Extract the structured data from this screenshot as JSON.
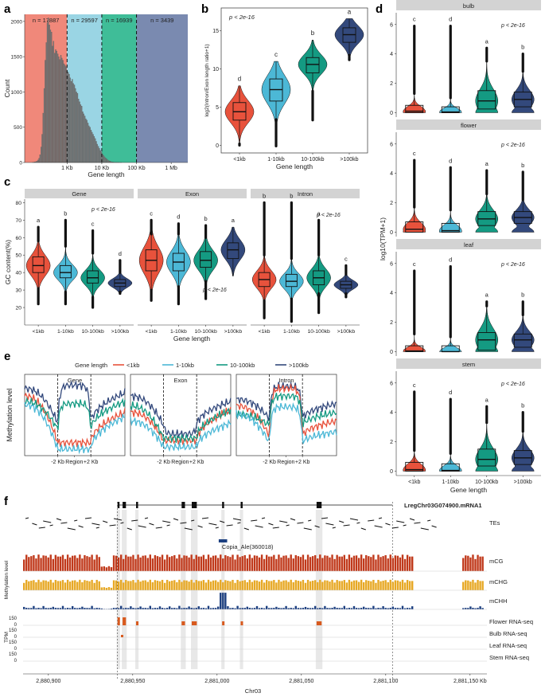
{
  "figure": {
    "panel_labels": [
      "a",
      "b",
      "c",
      "d",
      "e",
      "f"
    ],
    "colors": {
      "lt1": "#e8523c",
      "t1_10": "#4cb8d6",
      "t10_100": "#149a82",
      "gt100": "#33497c",
      "mCG": "#c0391b",
      "mCHG": "#e7a824",
      "mCHH": "#1c3f80",
      "rna": "#d85a1e"
    }
  },
  "chart_data": [
    {
      "panel": "a",
      "type": "bar",
      "title": "",
      "xlabel": "Gene length",
      "ylabel": "Count",
      "xscale": "log",
      "xlim_bp": [
        60,
        3000000
      ],
      "ylim": [
        0,
        2100
      ],
      "yticks": [
        "0",
        "500",
        "1000",
        "1500",
        "2000"
      ],
      "xticks": [
        "1 Kb",
        "10 Kb",
        "100 Kb",
        "1 Mb"
      ],
      "regions": [
        {
          "label": "n = 17887",
          "from_bp": 60,
          "to_bp": 1000,
          "color": "#f0887a"
        },
        {
          "label": "n = 29597",
          "from_bp": 1000,
          "to_bp": 10000,
          "color": "#9ad5e4"
        },
        {
          "label": "n = 16939",
          "from_bp": 10000,
          "to_bp": 100000,
          "color": "#3fbd98"
        },
        {
          "label": "n = 3439",
          "from_bp": 100000,
          "to_bp": 3000000,
          "color": "#7a8ab0"
        }
      ],
      "histogram": {
        "log10_start": 2.0,
        "bin_width_log10": 0.03,
        "counts": [
          3,
          5,
          8,
          12,
          20,
          35,
          60,
          110,
          220,
          400,
          700,
          1050,
          1450,
          1700,
          1980,
          2050,
          1950,
          1880,
          1850,
          1650,
          1720,
          1550,
          1600,
          1580,
          1540,
          1500,
          1460,
          1520,
          1480,
          1450,
          1400,
          1380,
          1360,
          1300,
          1280,
          1250,
          1200,
          1150,
          1180,
          1120,
          1100,
          1050,
          1000,
          980,
          900,
          860,
          820,
          800,
          720,
          690,
          660,
          620,
          600,
          560,
          520,
          500,
          460,
          430,
          400,
          370,
          340,
          300,
          260,
          230,
          200,
          170,
          150,
          120,
          100,
          80,
          65,
          50,
          38,
          28,
          20,
          14,
          10,
          7,
          5,
          4,
          3,
          2,
          2,
          1,
          1,
          1
        ]
      }
    },
    {
      "panel": "b",
      "type": "violin",
      "xlabel": "Gene length",
      "ylabel": "log2(Intron/Exon length ratio+1)",
      "ylim": [
        -1,
        18
      ],
      "yticks": [
        0,
        5,
        10,
        15
      ],
      "annotation": "p < 2e-16",
      "categories": [
        "<1kb",
        "1-10kb",
        "10-100kb",
        ">100kb"
      ],
      "letters": [
        "d",
        "c",
        "b",
        "a"
      ],
      "median": [
        4.4,
        7.3,
        10.6,
        14.5
      ],
      "q1": [
        3.3,
        5.8,
        9.5,
        13.5
      ],
      "q3": [
        5.6,
        8.7,
        11.5,
        15.4
      ],
      "whisker_low": [
        0.2,
        3.4,
        7.1,
        11.8
      ],
      "whisker_high": [
        7.8,
        11.0,
        13.8,
        16.6
      ],
      "y_max": [
        7.8,
        11.0,
        13.8,
        16.6
      ],
      "y_min": [
        0.0,
        -0.1,
        3.3,
        11.2
      ]
    },
    {
      "panel": "c",
      "type": "violin",
      "xlabel": "Gene length",
      "ylabel": "GC content(%)",
      "ylim": [
        10,
        82
      ],
      "yticks": [
        20,
        30,
        40,
        50,
        60,
        70,
        80
      ],
      "categories": [
        "<1kb",
        "1-10kb",
        "10-100kb",
        ">100kb"
      ],
      "facets": [
        {
          "name": "Gene",
          "annotation": "p < 2e-16",
          "letters": [
            "a",
            "b",
            "c",
            "d"
          ],
          "median": [
            44,
            40,
            37,
            34
          ],
          "q1": [
            40,
            37,
            34,
            32
          ],
          "q3": [
            49,
            44,
            41,
            36
          ],
          "whisker_low": [
            31,
            29,
            26,
            29
          ],
          "whisker_high": [
            58,
            55,
            51,
            40
          ],
          "y_min": [
            22,
            22,
            20,
            28
          ],
          "y_max": [
            66,
            70,
            64,
            47
          ]
        },
        {
          "name": "Exon",
          "annotation": "p < 2e-16",
          "letters": [
            "c",
            "d",
            "b",
            "a"
          ],
          "median": [
            47,
            46,
            47,
            53
          ],
          "q1": [
            41,
            41,
            43,
            48
          ],
          "q3": [
            53,
            51,
            52,
            57
          ],
          "whisker_low": [
            30,
            32,
            35,
            38
          ],
          "whisker_high": [
            62,
            62,
            60,
            66
          ],
          "y_min": [
            24,
            22,
            25,
            38
          ],
          "y_max": [
            70,
            68,
            67,
            66
          ]
        },
        {
          "name": "Intron",
          "annotation": "p < 2e-16",
          "letters": [
            "b",
            "b",
            "a",
            "c"
          ],
          "median": [
            36,
            35,
            37,
            33
          ],
          "q1": [
            32,
            32,
            33,
            31
          ],
          "q3": [
            40,
            39,
            41,
            35
          ],
          "whisker_low": [
            24,
            25,
            28,
            28
          ],
          "whisker_high": [
            50,
            48,
            50,
            39
          ],
          "y_min": [
            14,
            12,
            17,
            26
          ],
          "y_max": [
            80,
            80,
            70,
            44
          ]
        }
      ]
    },
    {
      "panel": "d",
      "type": "violin",
      "xlabel": "Gene length",
      "ylabel": "log10(TPM+1)",
      "ylim": [
        -0.3,
        6.8
      ],
      "yticks": [
        0,
        2,
        4,
        6
      ],
      "categories": [
        "<1kb",
        "1-10kb",
        "10-100kb",
        ">100kb"
      ],
      "facets": [
        {
          "name": "bulb",
          "annotation": "p < 2e-16",
          "letters": [
            "c",
            "d",
            "a",
            "b"
          ],
          "median": [
            0.1,
            0.05,
            0.8,
            0.9
          ],
          "q1": [
            0,
            0,
            0.25,
            0.4
          ],
          "q3": [
            0.5,
            0.4,
            1.5,
            1.4
          ],
          "whisker_high": [
            1.3,
            1.0,
            3.5,
            2.8
          ],
          "y_max": [
            5.9,
            5.9,
            4.4,
            4.0
          ]
        },
        {
          "name": "flower",
          "annotation": "p < 2e-16",
          "letters": [
            "c",
            "d",
            "a",
            "b"
          ],
          "median": [
            0.2,
            0.1,
            0.9,
            1.0
          ],
          "q1": [
            0,
            0,
            0.45,
            0.6
          ],
          "q3": [
            0.7,
            0.6,
            1.4,
            1.4
          ],
          "whisker_high": [
            1.7,
            1.5,
            2.6,
            2.2
          ],
          "y_max": [
            4.9,
            4.4,
            4.2,
            4.1
          ]
        },
        {
          "name": "leaf",
          "annotation": "p < 2e-16",
          "letters": [
            "c",
            "d",
            "a",
            "b"
          ],
          "median": [
            0.05,
            0.0,
            0.8,
            0.8
          ],
          "q1": [
            0,
            0,
            0.1,
            0.3
          ],
          "q3": [
            0.4,
            0.4,
            1.3,
            1.2
          ],
          "whisker_high": [
            1.2,
            1.0,
            3.1,
            2.5
          ],
          "y_max": [
            5.5,
            5.8,
            3.4,
            3.4
          ]
        },
        {
          "name": "stem",
          "annotation": "p < 2e-16",
          "letters": [
            "c",
            "d",
            "a",
            "b"
          ],
          "median": [
            0.1,
            0.05,
            0.8,
            0.9
          ],
          "q1": [
            0,
            0,
            0.35,
            0.45
          ],
          "q3": [
            0.6,
            0.5,
            1.5,
            1.4
          ],
          "whisker_high": [
            1.4,
            1.2,
            3.3,
            2.7
          ],
          "y_max": [
            5.4,
            4.9,
            4.4,
            4.0
          ]
        }
      ]
    },
    {
      "panel": "e",
      "type": "line",
      "legend_title": "Gene length",
      "legend": [
        "<1kb",
        "1-10kb",
        "10-100kb",
        ">100kb"
      ],
      "ylabel": "Methylation level",
      "xticks": [
        "-2 Kb",
        "Region",
        "+2 Kb"
      ],
      "facets": [
        {
          "name": "Gene",
          "upstream_start": [
            0.55,
            0.47,
            0.5,
            0.62
          ],
          "boundary": [
            0.12,
            0.06,
            0.24,
            0.3
          ],
          "body": [
            0.12,
            0.06,
            0.48,
            0.65
          ],
          "downstream_end": [
            0.4,
            0.36,
            0.5,
            0.58
          ]
        },
        {
          "name": "Exon",
          "upstream_start": [
            0.4,
            0.32,
            0.46,
            0.55
          ],
          "boundary": [
            0.14,
            0.08,
            0.16,
            0.28
          ],
          "body": [
            0.14,
            0.08,
            0.16,
            0.2
          ],
          "downstream_end": [
            0.42,
            0.3,
            0.42,
            0.5
          ]
        },
        {
          "name": "Intron",
          "upstream_start": [
            0.46,
            0.38,
            0.38,
            0.52
          ],
          "boundary": [
            0.18,
            0.12,
            0.28,
            0.34
          ],
          "body": [
            0.62,
            0.45,
            0.55,
            0.64
          ],
          "downstream_end": [
            0.32,
            0.22,
            0.4,
            0.48
          ]
        }
      ]
    },
    {
      "panel": "f",
      "type": "track",
      "gene_name": "LregChr03G074900.mRNA1",
      "te_label": "Copia_Ale(360018)",
      "tracks": [
        "TEs",
        "mCG",
        "mCHG",
        "mCHH",
        "Flower RNA-seq",
        "Bulb RNA-seq",
        "Leaf RNA-seq",
        "Stem RNA-seq"
      ],
      "meth_axis_label": "Methylation level",
      "tpm_axis_label": "TPM",
      "tpm_ticks": [
        "150",
        "0"
      ],
      "xlabel": "Chr03",
      "xticks": [
        "2,880,900",
        "2,880,950",
        "2,881,000",
        "2,881,050",
        "2,881,100",
        "2,881,150 Kb"
      ],
      "xrange_kb": [
        2880885,
        2881160
      ],
      "gene_start_kb": 2880941,
      "gene_end_kb": 2881104,
      "exons_kb": [
        [
          2880941,
          2880942
        ],
        [
          2880944,
          2880946
        ],
        [
          2880952,
          2880953
        ],
        [
          2880979,
          2880981
        ],
        [
          2880985,
          2880988
        ],
        [
          2881003,
          2881004
        ],
        [
          2881014,
          2881015
        ],
        [
          2881059,
          2881062
        ]
      ],
      "te_kb": [
        2881001,
        2881006
      ]
    }
  ]
}
